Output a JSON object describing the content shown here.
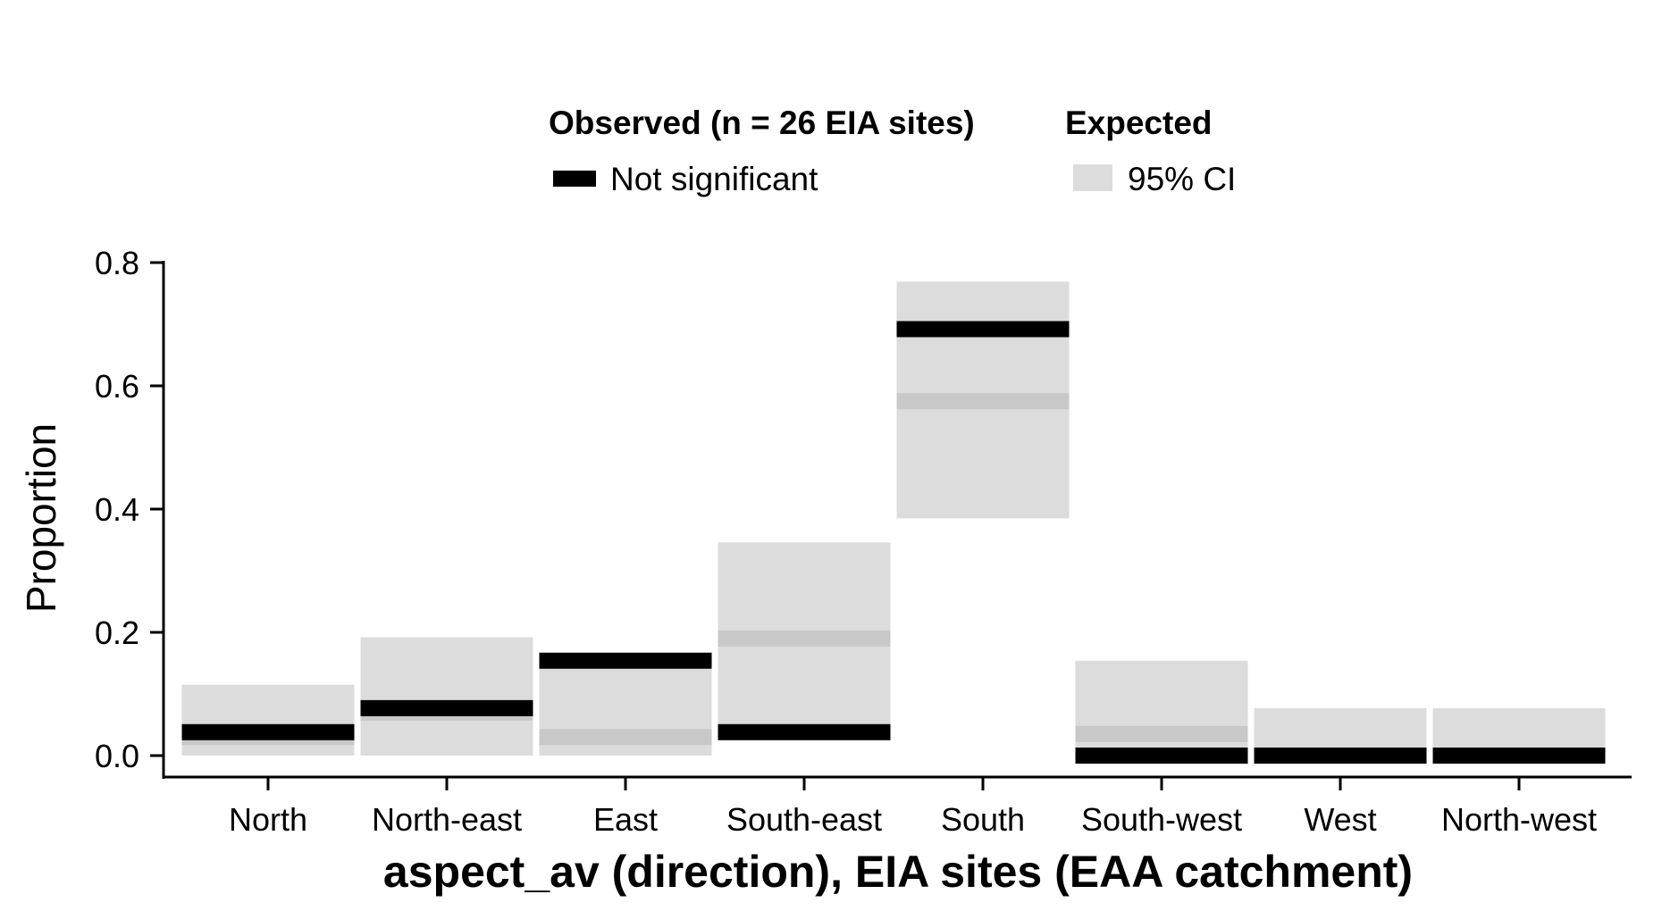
{
  "chart_data": {
    "type": "bar",
    "title": "",
    "xlabel": "aspect_av (direction), EIA sites (EAA catchment)",
    "ylabel": "Proportion",
    "ylim": [
      0,
      0.8
    ],
    "yticks": [
      0.0,
      0.2,
      0.4,
      0.6,
      0.8
    ],
    "ytick_labels": [
      "0.0",
      "0.2",
      "0.4",
      "0.6",
      "0.8"
    ],
    "grid": false,
    "legend_position": "top",
    "categories": [
      "North",
      "North-east",
      "East",
      "South-east",
      "South",
      "South-west",
      "West",
      "North-west"
    ],
    "series": [
      {
        "name": "Not significant",
        "group": "Observed (n = 26 EIA sites)",
        "kind": "observed-line",
        "values": [
          0.038,
          0.077,
          0.154,
          0.038,
          0.692,
          0.0,
          0.0,
          0.0
        ]
      },
      {
        "name": "Expected",
        "kind": "expected-line",
        "values": [
          0.03,
          0.07,
          0.03,
          0.19,
          0.575,
          0.035,
          0.0,
          0.0
        ]
      },
      {
        "name": "95% CI",
        "group": "Expected",
        "kind": "ci-band",
        "lower": [
          0.0,
          0.0,
          0.0,
          0.038,
          0.385,
          0.0,
          0.0,
          0.0
        ],
        "upper": [
          0.115,
          0.192,
          0.154,
          0.346,
          0.769,
          0.154,
          0.077,
          0.077
        ]
      }
    ],
    "legend": {
      "observed_title": "Observed (n = 26 EIA sites)",
      "observed_label": "Not significant",
      "expected_title": "Expected",
      "expected_label": "95% CI"
    },
    "colors": {
      "observed": "#000000",
      "expected_line": "#c8c8c8",
      "ci_band": "#dcdcdc"
    }
  }
}
